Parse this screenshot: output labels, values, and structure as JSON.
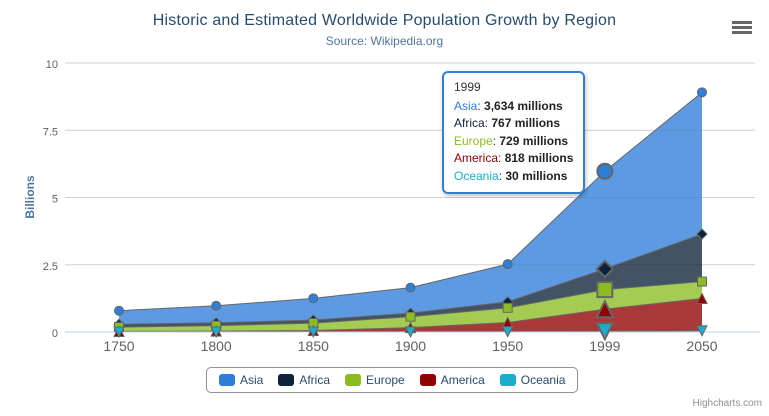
{
  "chart_data": {
    "type": "area",
    "stacking": "normal",
    "title": "Historic and Estimated Worldwide Population Growth by Region",
    "subtitle": "Source: Wikipedia.org",
    "xlabel": "",
    "ylabel": "Billions",
    "categories": [
      "1750",
      "1800",
      "1850",
      "1900",
      "1950",
      "1999",
      "2050"
    ],
    "yticks": [
      "0",
      "2.5",
      "5",
      "7.5",
      "10"
    ],
    "ylim": [
      0,
      10
    ],
    "grid": true,
    "legend_position": "bottom-center",
    "series_value_unit": "millions",
    "hovered_category": "1999",
    "series": [
      {
        "name": "Asia",
        "color": "#2f7ed8",
        "marker": "circle",
        "values_millions": [
          502,
          635,
          809,
          947,
          1402,
          3634,
          5268
        ]
      },
      {
        "name": "Africa",
        "color": "#0d233a",
        "marker": "diamond",
        "values_millions": [
          106,
          107,
          111,
          133,
          221,
          767,
          1766
        ]
      },
      {
        "name": "Europe",
        "color": "#8bbc21",
        "marker": "square",
        "values_millions": [
          163,
          203,
          276,
          408,
          547,
          729,
          628
        ]
      },
      {
        "name": "America",
        "color": "#910000",
        "marker": "triangle-up",
        "values_millions": [
          18,
          31,
          54,
          156,
          339,
          818,
          1201
        ]
      },
      {
        "name": "Oceania",
        "color": "#1aadce",
        "marker": "triangle-down",
        "values_millions": [
          2,
          2,
          2,
          6,
          13,
          30,
          46
        ]
      }
    ]
  },
  "tooltip": {
    "header": "1999",
    "rows": [
      {
        "label": "Asia",
        "color": "#2f7ed8",
        "value": "3,634 millions"
      },
      {
        "label": "Africa",
        "color": "#0d233a",
        "value": "767 millions"
      },
      {
        "label": "Europe",
        "color": "#8bbc21",
        "value": "729 millions"
      },
      {
        "label": "America",
        "color": "#910000",
        "value": "818 millions"
      },
      {
        "label": "Oceania",
        "color": "#1aadce",
        "value": "30 millions"
      }
    ]
  },
  "legend": {
    "items": [
      "Asia",
      "Africa",
      "Europe",
      "America",
      "Oceania"
    ]
  },
  "credits": "Highcharts.com",
  "colors": {
    "title": "#274b6d",
    "subtitle": "#4d759e",
    "axis_label": "#606060",
    "axis_title": "#4d759e",
    "grid_line": "#d0d0d0",
    "axis_line": "#c0d0e0",
    "series_outline": "#666666",
    "tooltip_border": "#2f7ed8",
    "legend_text": "#274b6d"
  }
}
